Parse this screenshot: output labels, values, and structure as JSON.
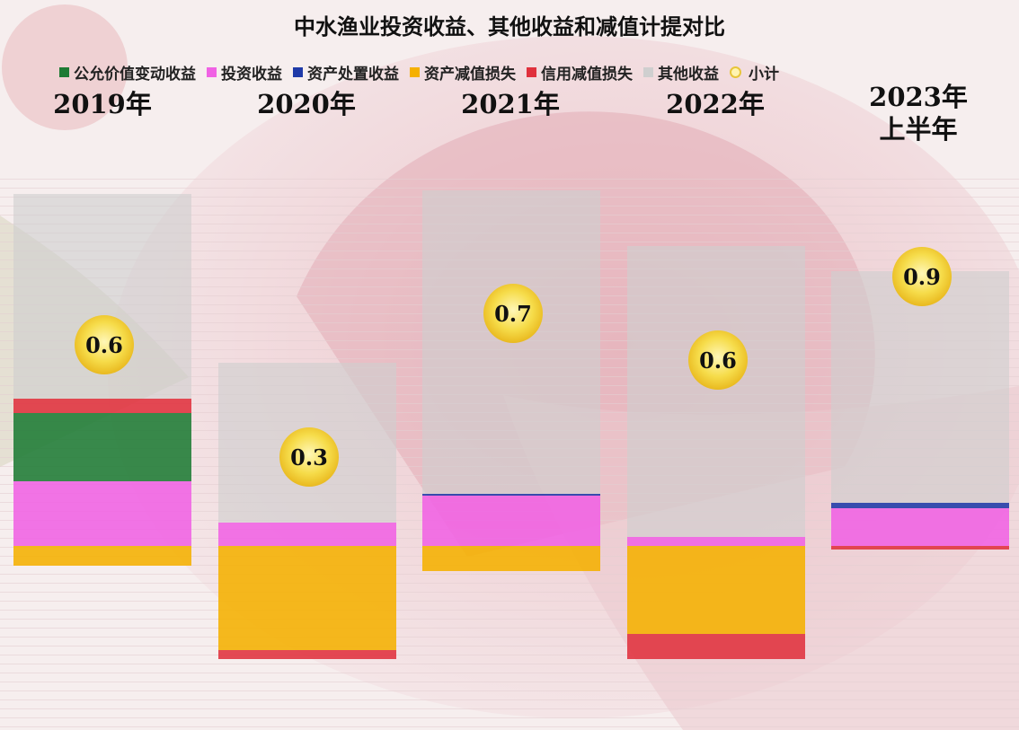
{
  "title": "中水渔业投资收益、其他收益和减值计提对比",
  "legend": [
    {
      "label": "公允价值变动收益",
      "color": "#1e7b34"
    },
    {
      "label": "投资收益",
      "color": "#f062e4"
    },
    {
      "label": "资产处置收益",
      "color": "#1f3aa8"
    },
    {
      "label": "资产减值损失",
      "color": "#f5b000"
    },
    {
      "label": "信用减值损失",
      "color": "#e0313d"
    },
    {
      "label": "其他收益",
      "color": "#cfcfcf"
    },
    {
      "label": "小计",
      "color": "#f2d23b"
    }
  ],
  "years": [
    {
      "line1": "",
      "line2": "2019年"
    },
    {
      "line1": "",
      "line2": "2020年"
    },
    {
      "line1": "",
      "line2": "2021年"
    },
    {
      "line1": "",
      "line2": "2022年"
    },
    {
      "line1": "2023年",
      "line2": "上半年"
    }
  ],
  "chart_data": {
    "type": "bar",
    "stacked": true,
    "categories": [
      "2019年",
      "2020年",
      "2021年",
      "2022年",
      "2023年上半年"
    ],
    "series": [
      {
        "name": "公允价值变动收益",
        "values": [
          0.38,
          0.0,
          0.0,
          0.0,
          0.0
        ]
      },
      {
        "name": "投资收益",
        "values": [
          0.36,
          0.13,
          0.28,
          0.05,
          0.21
        ]
      },
      {
        "name": "资产处置收益",
        "values": [
          0.0,
          0.0,
          0.01,
          0.0,
          0.03
        ]
      },
      {
        "name": "资产减值损失",
        "values": [
          -0.11,
          -0.58,
          -0.14,
          -0.49,
          0.0
        ]
      },
      {
        "name": "信用减值损失",
        "values": [
          0.08,
          -0.05,
          0.0,
          -0.14,
          -0.02
        ]
      },
      {
        "name": "其他收益",
        "values": [
          1.14,
          0.89,
          1.69,
          1.62,
          1.29
        ]
      }
    ],
    "subtotal": {
      "name": "小计",
      "values": [
        0.6,
        0.3,
        0.7,
        0.6,
        0.9
      ],
      "labels": [
        "0.6",
        "0.3",
        "0.7",
        "0.6",
        "0.9"
      ]
    },
    "xlabel": "",
    "ylabel": "",
    "ylim": [
      -1.0,
      2.2
    ]
  }
}
